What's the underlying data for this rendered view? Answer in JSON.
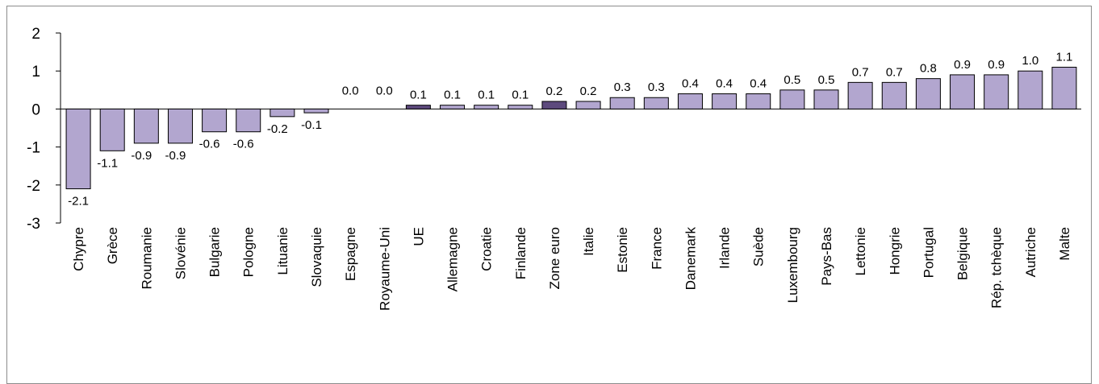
{
  "chart_data": {
    "type": "bar",
    "title": "",
    "xlabel": "",
    "ylabel": "",
    "ylim": [
      -3,
      2
    ],
    "yticks": [
      2,
      1,
      0,
      -1,
      -2,
      -3
    ],
    "legend": "none",
    "colors": {
      "bar": "#b2a6cf",
      "highlight": "#5d4a7d",
      "edge": "#000000"
    },
    "highlight": [
      "UE",
      "Zone euro"
    ],
    "categories": [
      "Chypre",
      "Grèce",
      "Roumanie",
      "Slovénie",
      "Bulgarie",
      "Pologne",
      "Lituanie",
      "Slovaquie",
      "Espagne",
      "Royaume-Uni",
      "UE",
      "Allemagne",
      "Croatie",
      "Finlande",
      "Zone euro",
      "Italie",
      "Estonie",
      "France",
      "Danemark",
      "Irlande",
      "Suède",
      "Luxembourg",
      "Pays-Bas",
      "Lettonie",
      "Hongrie",
      "Portugal",
      "Belgique",
      "Rép. tchèque",
      "Autriche",
      "Malte"
    ],
    "values": [
      -2.1,
      -1.1,
      -0.9,
      -0.9,
      -0.6,
      -0.6,
      -0.2,
      -0.1,
      0.0,
      0.0,
      0.1,
      0.1,
      0.1,
      0.1,
      0.2,
      0.2,
      0.3,
      0.3,
      0.4,
      0.4,
      0.4,
      0.5,
      0.5,
      0.7,
      0.7,
      0.8,
      0.9,
      0.9,
      1.0,
      1.1
    ],
    "data_labels": [
      "-2.1",
      "-1.1",
      "-0.9",
      "-0.9",
      "-0.6",
      "-0.6",
      "-0.2",
      "-0.1",
      "0.0",
      "0.0",
      "0.1",
      "0.1",
      "0.1",
      "0.1",
      "0.2",
      "0.2",
      "0.3",
      "0.3",
      "0.4",
      "0.4",
      "0.4",
      "0.5",
      "0.5",
      "0.7",
      "0.7",
      "0.8",
      "0.9",
      "0.9",
      "1.0",
      "1.1"
    ]
  }
}
